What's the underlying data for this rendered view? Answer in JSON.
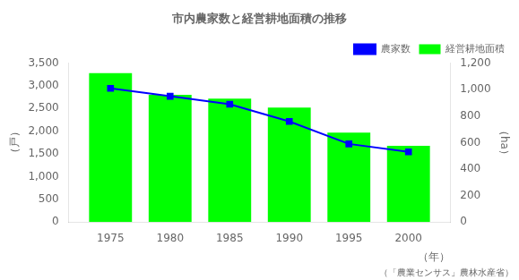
{
  "chart_data": {
    "type": "bar",
    "title": "市内農家数と経営耕地面積の推移",
    "xlabel": "（年）",
    "ylabel": "（戸）",
    "y2label": "（ha）",
    "annotations": [
      "（「農業センサス」農林水産省）"
    ],
    "x": [
      1975,
      1980,
      1985,
      1990,
      1995,
      2000
    ],
    "series": [
      {
        "name": "経営耕地面積",
        "type": "bar",
        "color": "#00FF00",
        "values": [
          3280,
          2800,
          2720,
          2520,
          1970,
          1680
        ]
      },
      {
        "name": "農家数",
        "type": "line",
        "color": "#0000FF",
        "marker": "square",
        "axis": "y2",
        "values": [
          1010,
          950,
          890,
          760,
          590,
          530
        ]
      }
    ],
    "xlim": [
      1971.5,
      2003.5
    ],
    "xticks": [
      1975,
      1980,
      1985,
      1990,
      1995,
      2000
    ],
    "ylim": [
      0,
      3500
    ],
    "yticks": [
      0,
      500,
      {
        "value": 1000,
        "label": "1,000"
      },
      {
        "value": 1500,
        "label": "1,500"
      },
      {
        "value": 2000,
        "label": "2,000"
      },
      {
        "value": 2500,
        "label": "2,500"
      },
      {
        "value": 3000,
        "label": "3,000"
      },
      {
        "value": 3500,
        "label": "3,500"
      }
    ],
    "y2lim": [
      0,
      1200
    ],
    "y2ticks": [
      0,
      200,
      400,
      600,
      800,
      {
        "value": 1000,
        "label": "1,000"
      },
      {
        "value": 1200,
        "label": "1,200"
      }
    ],
    "grid": false,
    "legend": "upper right"
  }
}
